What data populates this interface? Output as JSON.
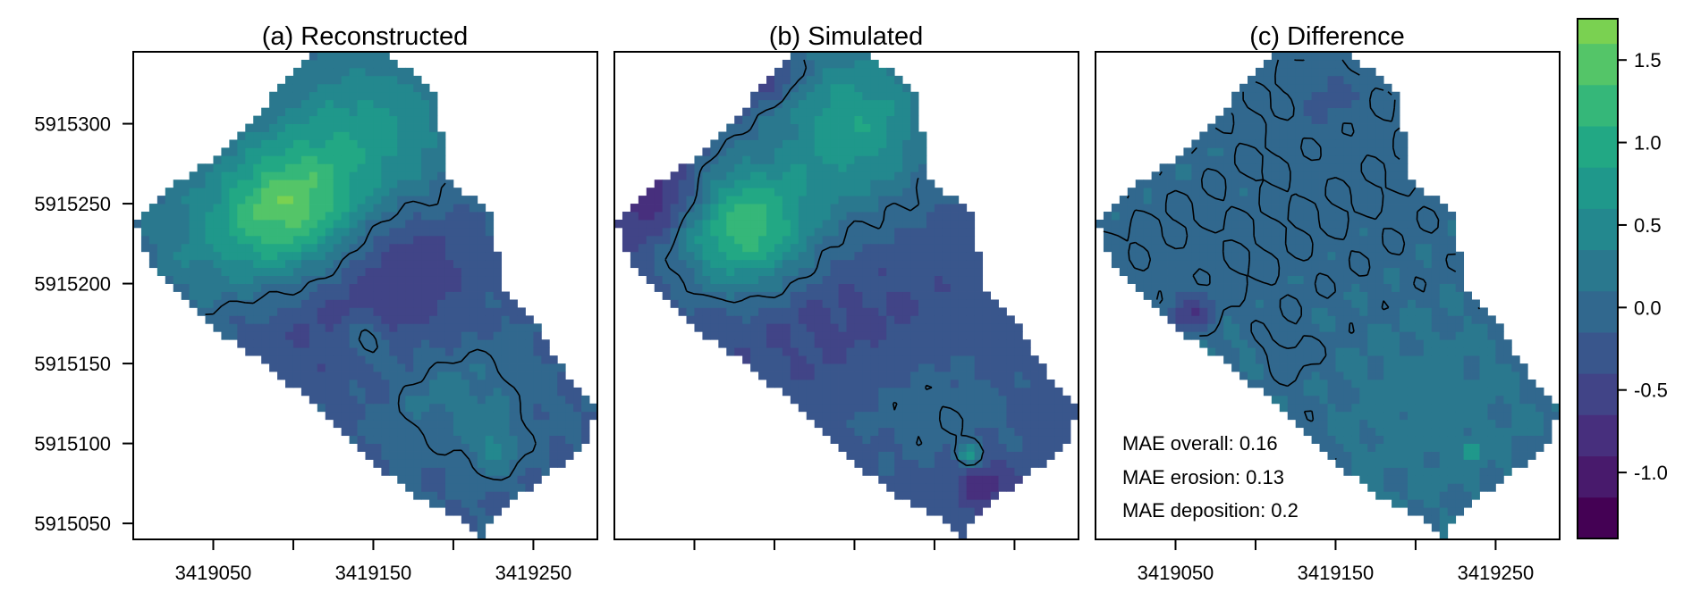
{
  "chart_data": {
    "type": "heatmap",
    "colorbar": {
      "range": [
        -1.4,
        1.75
      ],
      "step": 0.25,
      "ticks": [
        -1.0,
        -0.5,
        0.0,
        0.5,
        1.0,
        1.5
      ],
      "tick_labels": [
        "-1.0",
        "-0.5",
        "0.0",
        "0.5",
        "1.0",
        "1.5"
      ],
      "colors": [
        "#440154",
        "#481a6c",
        "#472f7d",
        "#414487",
        "#39568c",
        "#31688e",
        "#2a788e",
        "#23888e",
        "#1f988b",
        "#22a884",
        "#35b779",
        "#54c568",
        "#7ad151",
        "#a5db36",
        "#d2e21b",
        "#fde725"
      ]
    },
    "x_range": [
      3419000,
      3419290
    ],
    "y_range": [
      5915040,
      5915345
    ],
    "x_ticks": [
      3419050,
      3419100,
      3419150,
      3419200,
      3419250
    ],
    "x_tick_labels": [
      "3419050",
      "3419150",
      "3419250"
    ],
    "y_ticks": [
      5915050,
      5915100,
      5915150,
      5915200,
      5915250,
      5915300
    ],
    "y_tick_labels": [
      "5915050",
      "5915100",
      "5915150",
      "5915200",
      "5915250",
      "5915300"
    ],
    "domain_polygon": [
      [
        3419000,
        5915240
      ],
      [
        3419025,
        5915262
      ],
      [
        3419050,
        5915278
      ],
      [
        3419070,
        5915295
      ],
      [
        3419090,
        5915322
      ],
      [
        3419110,
        5915343
      ],
      [
        3419160,
        5915343
      ],
      [
        3419190,
        5915318
      ],
      [
        3419195,
        5915268
      ],
      [
        3419225,
        5915242
      ],
      [
        3419230,
        5915200
      ],
      [
        3419255,
        5915170
      ],
      [
        3419270,
        5915145
      ],
      [
        3419290,
        5915125
      ],
      [
        3419285,
        5915100
      ],
      [
        3419265,
        5915085
      ],
      [
        3419245,
        5915070
      ],
      [
        3419225,
        5915055
      ],
      [
        3419220,
        5915040
      ],
      [
        3419200,
        5915055
      ],
      [
        3419175,
        5915068
      ],
      [
        3419150,
        5915088
      ],
      [
        3419125,
        5915112
      ],
      [
        3419100,
        5915135
      ],
      [
        3419075,
        5915155
      ],
      [
        3419050,
        5915172
      ],
      [
        3419030,
        5915195
      ],
      [
        3419010,
        5915215
      ]
    ],
    "panels": [
      {
        "key": "reconstructed",
        "title": "(a) Reconstructed",
        "base": -0.15,
        "blobs": [
          {
            "x": 3419095,
            "y": 5915248,
            "sx": 30,
            "sy": 28,
            "a": 1.35
          },
          {
            "x": 3419145,
            "y": 5915292,
            "sx": 40,
            "sy": 38,
            "a": 0.85
          },
          {
            "x": 3419050,
            "y": 5915225,
            "sx": 40,
            "sy": 30,
            "a": 0.45
          },
          {
            "x": 3419170,
            "y": 5915215,
            "sx": 30,
            "sy": 28,
            "a": -0.45
          },
          {
            "x": 3419120,
            "y": 5915175,
            "sx": 40,
            "sy": 30,
            "a": -0.3
          },
          {
            "x": 3419200,
            "y": 5915130,
            "sx": 30,
            "sy": 22,
            "a": 0.35
          },
          {
            "x": 3419145,
            "y": 5915165,
            "sx": 10,
            "sy": 10,
            "a": 0.5
          },
          {
            "x": 3419225,
            "y": 5915097,
            "sx": 12,
            "sy": 12,
            "a": 0.45
          }
        ]
      },
      {
        "key": "simulated",
        "title": "(b) Simulated",
        "base": -0.3,
        "blobs": [
          {
            "x": 3419080,
            "y": 5915235,
            "sx": 30,
            "sy": 28,
            "a": 1.6
          },
          {
            "x": 3419150,
            "y": 5915300,
            "sx": 35,
            "sy": 38,
            "a": 1.1
          },
          {
            "x": 3419025,
            "y": 5915255,
            "sx": 25,
            "sy": 20,
            "a": -0.75
          },
          {
            "x": 3419090,
            "y": 5915330,
            "sx": 18,
            "sy": 10,
            "a": -0.55
          },
          {
            "x": 3419130,
            "y": 5915180,
            "sx": 50,
            "sy": 30,
            "a": -0.2
          },
          {
            "x": 3419200,
            "y": 5915120,
            "sx": 40,
            "sy": 28,
            "a": 0.3
          },
          {
            "x": 3419230,
            "y": 5915075,
            "sx": 12,
            "sy": 10,
            "a": -0.6
          },
          {
            "x": 3419222,
            "y": 5915093,
            "sx": 5,
            "sy": 5,
            "a": 1.0
          }
        ]
      },
      {
        "key": "difference",
        "title": "(c) Difference",
        "base": 0.05,
        "blobs": [
          {
            "x": 3419050,
            "y": 5915200,
            "sx": 40,
            "sy": 30,
            "a": -0.12
          },
          {
            "x": 3419150,
            "y": 5915290,
            "sx": 40,
            "sy": 40,
            "a": -0.1
          },
          {
            "x": 3419210,
            "y": 5915120,
            "sx": 40,
            "sy": 40,
            "a": 0.15
          },
          {
            "x": 3419055,
            "y": 5915160,
            "sx": 30,
            "sy": 20,
            "a": 0.18
          },
          {
            "x": 3419060,
            "y": 5915180,
            "sx": 10,
            "sy": 8,
            "a": -0.7
          },
          {
            "x": 3419120,
            "y": 5915155,
            "sx": 12,
            "sy": 10,
            "a": -0.15
          },
          {
            "x": 3419145,
            "y": 5915320,
            "sx": 12,
            "sy": 12,
            "a": -0.2
          },
          {
            "x": 3419235,
            "y": 5915095,
            "sx": 4,
            "sy": 4,
            "a": 0.9
          }
        ]
      }
    ],
    "contour_level": 0.0,
    "annotations": [
      "MAE overall: 0.16",
      "MAE erosion: 0.13",
      "MAE deposition: 0.2"
    ]
  }
}
